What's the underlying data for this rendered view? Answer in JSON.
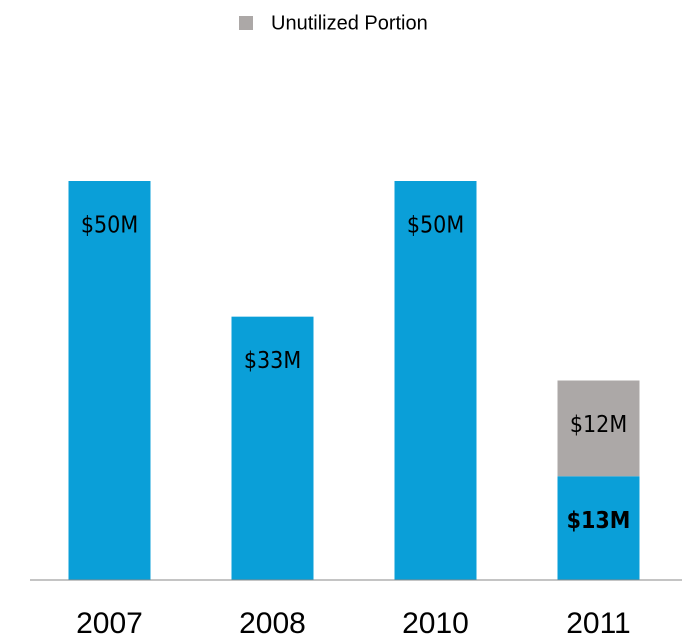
{
  "chart_data": {
    "type": "stacked_bar",
    "categories": [
      "2007",
      "2008",
      "2010",
      "2011"
    ],
    "series": [
      {
        "color": "#0a9fd8",
        "values": [
          50,
          33,
          50,
          13
        ],
        "value_labels": [
          "$50M",
          "$33M",
          "$50M",
          "$13M"
        ]
      },
      {
        "name": "Unutilized Portion",
        "color": "#aca8a7",
        "values": [
          null,
          null,
          null,
          12
        ],
        "value_labels": [
          null,
          null,
          null,
          "$12M"
        ]
      }
    ],
    "ylim": [
      0,
      50
    ]
  }
}
